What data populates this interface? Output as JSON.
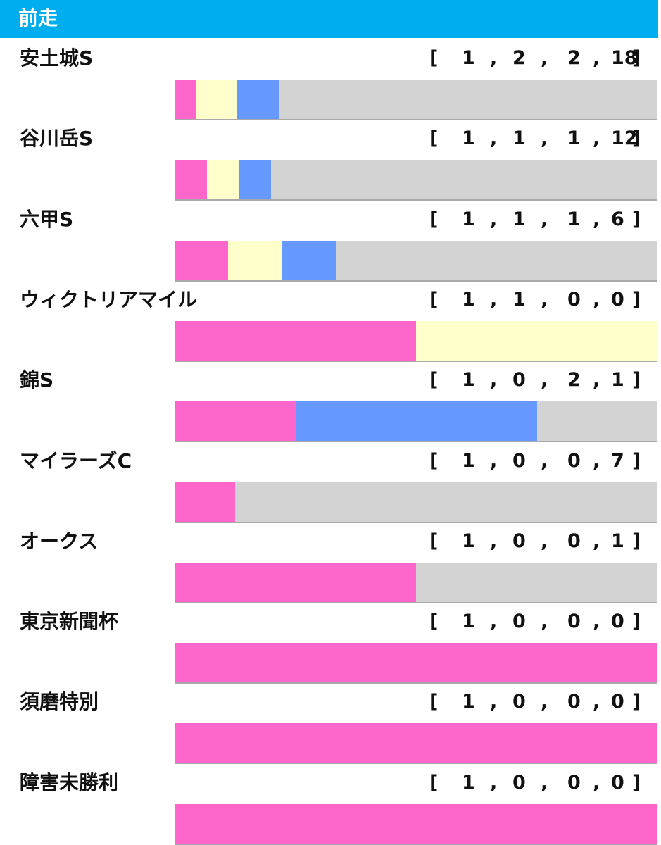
{
  "header": {
    "title": "前走"
  },
  "colors": {
    "first": "#ff66cc",
    "second": "#ffffcc",
    "third": "#6699ff",
    "other": "#d3d3d3",
    "header_bg": "#00aeef"
  },
  "chart_data": {
    "type": "bar",
    "stacked": true,
    "orientation": "horizontal",
    "normalized": true,
    "categories": [
      "安土城S",
      "谷川岳S",
      "六甲S",
      "ウィクトリアマイル",
      "錦S",
      "マイラーズC",
      "オークス",
      "東京新聞杯",
      "須磨特別",
      "障害未勝利"
    ],
    "series": [
      {
        "values": [
          1,
          1,
          1,
          1,
          1,
          1,
          1,
          1,
          1,
          1
        ]
      },
      {
        "values": [
          2,
          1,
          1,
          1,
          0,
          0,
          0,
          0,
          0,
          0
        ]
      },
      {
        "values": [
          2,
          1,
          1,
          0,
          2,
          0,
          0,
          0,
          0,
          0
        ]
      },
      {
        "values": [
          18,
          12,
          6,
          0,
          1,
          7,
          1,
          0,
          0,
          0
        ]
      }
    ]
  },
  "rows": [
    {
      "label": "安土城S",
      "record": [
        "[",
        "1",
        ",",
        "2",
        ",",
        "2",
        ",",
        "18",
        "]"
      ]
    },
    {
      "label": "谷川岳S",
      "record": [
        "[",
        "1",
        ",",
        "1",
        ",",
        "1",
        ",",
        "12",
        "]"
      ]
    },
    {
      "label": "六甲S",
      "record": [
        "[",
        "1",
        ",",
        "1",
        ",",
        "1",
        ",",
        "6",
        "]"
      ]
    },
    {
      "label": "ウィクトリアマイル",
      "record": [
        "[",
        "1",
        ",",
        "1",
        ",",
        "0",
        ",",
        "0",
        "]"
      ]
    },
    {
      "label": "錦S",
      "record": [
        "[",
        "1",
        ",",
        "0",
        ",",
        "2",
        ",",
        "1",
        "]"
      ]
    },
    {
      "label": "マイラーズC",
      "record": [
        "[",
        "1",
        ",",
        "0",
        ",",
        "0",
        ",",
        "7",
        "]"
      ]
    },
    {
      "label": "オークス",
      "record": [
        "[",
        "1",
        ",",
        "0",
        ",",
        "0",
        ",",
        "1",
        "]"
      ]
    },
    {
      "label": "東京新聞杯",
      "record": [
        "[",
        "1",
        ",",
        "0",
        ",",
        "0",
        ",",
        "0",
        "]"
      ]
    },
    {
      "label": "須磨特別",
      "record": [
        "[",
        "1",
        ",",
        "0",
        ",",
        "0",
        ",",
        "0",
        "]"
      ]
    },
    {
      "label": "障害未勝利",
      "record": [
        "[",
        "1",
        ",",
        "0",
        ",",
        "0",
        ",",
        "0",
        "]"
      ]
    }
  ]
}
